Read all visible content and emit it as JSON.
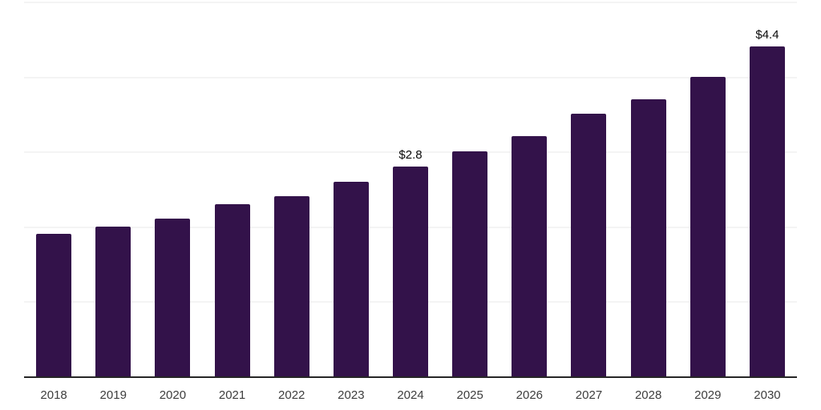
{
  "chart_data": {
    "type": "bar",
    "title": "",
    "xlabel": "",
    "ylabel": "",
    "categories": [
      "2018",
      "2019",
      "2020",
      "2021",
      "2022",
      "2023",
      "2024",
      "2025",
      "2026",
      "2027",
      "2028",
      "2029",
      "2030"
    ],
    "values": [
      1.9,
      2.0,
      2.1,
      2.3,
      2.4,
      2.6,
      2.8,
      3.0,
      3.2,
      3.5,
      3.7,
      4.0,
      4.4
    ],
    "data_labels": {
      "2024": "$2.8",
      "2030": "$4.4"
    },
    "ylim": [
      0,
      5
    ],
    "grid": true,
    "gridline_values": [
      1,
      2,
      3,
      4,
      5
    ],
    "legend": "none",
    "colors": {
      "bar": "#33124a",
      "axis_line": "#262626",
      "gridline": "#f4f4f4",
      "tick_label": "#3d3d3d",
      "data_label": "#0a0a0a",
      "background": "#ffffff"
    }
  }
}
